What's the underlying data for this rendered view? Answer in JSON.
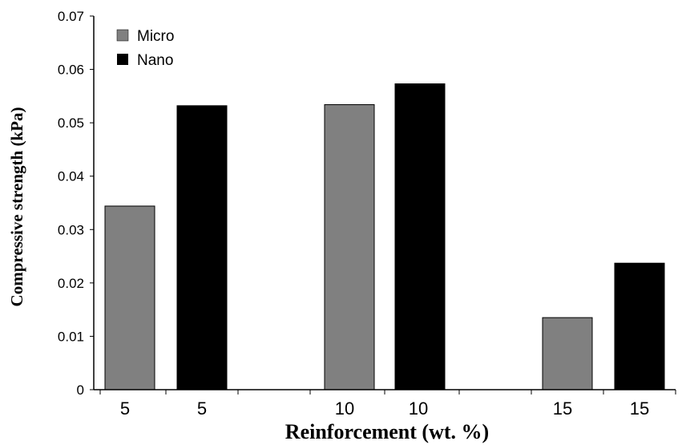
{
  "chart_data": {
    "type": "bar",
    "title": "",
    "xlabel": "Reinforcement (wt. %)",
    "ylabel": "Compressive strength (kPa)",
    "ylim": [
      0,
      0.07
    ],
    "yticks": [
      "0",
      "0.01",
      "0.02",
      "0.03",
      "0.04",
      "0.05",
      "0.06",
      "0.07"
    ],
    "grid": false,
    "legend_position": "top-left",
    "categories": [
      "5",
      "10",
      "15"
    ],
    "series": [
      {
        "name": "Micro",
        "color": "#808080",
        "values": [
          0.0344,
          0.0534,
          0.0135
        ]
      },
      {
        "name": "Nano",
        "color": "#000000",
        "values": [
          0.0532,
          0.0573,
          0.0237
        ]
      }
    ],
    "x_tick_labels": [
      "5",
      "5",
      "10",
      "10",
      "15",
      "15"
    ]
  }
}
